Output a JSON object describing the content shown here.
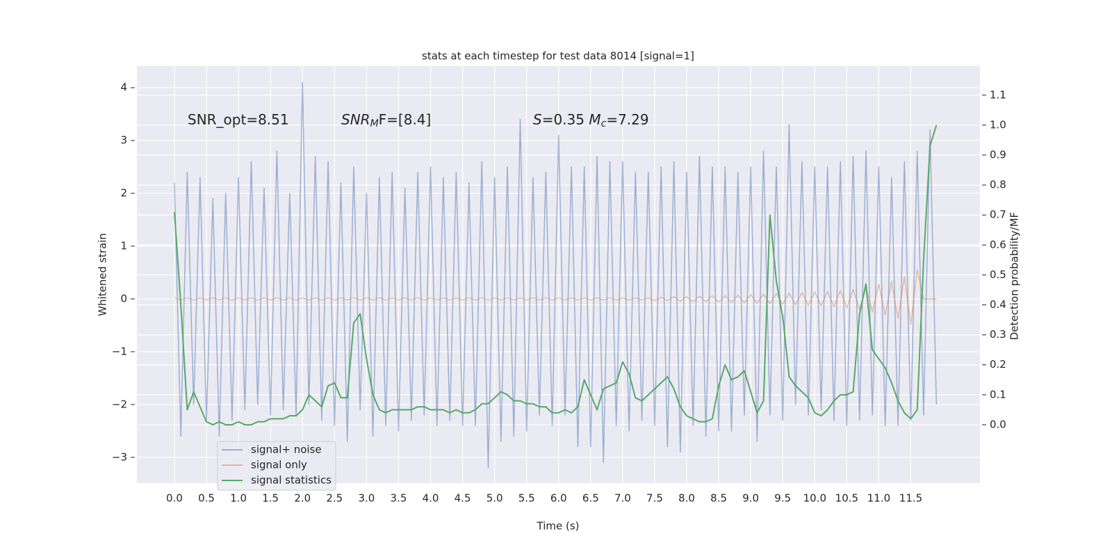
{
  "chart_data": {
    "type": "line",
    "title": "stats at each timestep for test data 8014 [signal=1]",
    "xlabel": "Time (s)",
    "ylabel": "Whitened strain",
    "y2label": "Detection probability/MF",
    "annotations": [
      [
        {
          "text": "SNR_opt=8.51",
          "style": "normal"
        }
      ],
      [
        {
          "text": "SNR",
          "style": "italic"
        },
        {
          "text": "M",
          "style": "sub-italic"
        },
        {
          "text": "F=[8.4]",
          "style": "normal"
        }
      ],
      [
        {
          "text": "S",
          "style": "italic"
        },
        {
          "text": "=0.35   ",
          "style": "normal"
        },
        {
          "text": "M",
          "style": "italic"
        },
        {
          "text": "c",
          "style": "sub-italic"
        },
        {
          "text": "=7.29",
          "style": "normal"
        }
      ]
    ],
    "x": [
      0,
      0.1,
      0.2,
      0.3,
      0.4,
      0.5,
      0.6,
      0.7,
      0.8,
      0.9,
      1,
      1.1,
      1.2,
      1.3,
      1.4,
      1.5,
      1.6,
      1.7,
      1.8,
      1.9,
      2,
      2.1,
      2.2,
      2.3,
      2.4,
      2.5,
      2.6,
      2.7,
      2.8,
      2.9,
      3,
      3.1,
      3.2,
      3.3,
      3.4,
      3.5,
      3.6,
      3.7,
      3.8,
      3.9,
      4,
      4.1,
      4.2,
      4.3,
      4.4,
      4.5,
      4.6,
      4.7,
      4.8,
      4.9,
      5,
      5.1,
      5.2,
      5.3,
      5.4,
      5.5,
      5.6,
      5.7,
      5.8,
      5.9,
      6,
      6.1,
      6.2,
      6.3,
      6.4,
      6.5,
      6.6,
      6.7,
      6.8,
      6.9,
      7,
      7.1,
      7.2,
      7.3,
      7.4,
      7.5,
      7.6,
      7.7,
      7.8,
      7.9,
      8,
      8.1,
      8.2,
      8.3,
      8.4,
      8.5,
      8.6,
      8.7,
      8.8,
      8.9,
      9,
      9.1,
      9.2,
      9.3,
      9.4,
      9.5,
      9.6,
      9.7,
      9.8,
      9.9,
      10,
      10.1,
      10.2,
      10.3,
      10.4,
      10.5,
      10.6,
      10.7,
      10.8,
      10.9,
      11,
      11.1,
      11.2,
      11.3,
      11.4,
      11.5,
      11.6,
      11.7,
      11.8,
      11.9
    ],
    "series": [
      {
        "name": "signal+ noise",
        "color": "#4c72b0",
        "opacity": 0.5,
        "values": [
          2.2,
          -2.6,
          2.4,
          -2.0,
          2.3,
          -2.3,
          1.9,
          -2.6,
          2.0,
          -2.3,
          2.3,
          -2.1,
          2.6,
          -2.0,
          2.1,
          -2.2,
          2.8,
          -2.1,
          2.0,
          -2.2,
          4.1,
          -2.0,
          2.7,
          -2.3,
          2.6,
          -2.4,
          2.2,
          -2.7,
          2.5,
          -2.1,
          2.0,
          -2.6,
          2.3,
          -2.4,
          2.4,
          -2.5,
          2.1,
          -2.3,
          2.4,
          -2.2,
          2.5,
          -2.4,
          2.3,
          -2.3,
          2.4,
          -2.4,
          2.2,
          -2.4,
          2.6,
          -3.2,
          2.3,
          -2.7,
          2.5,
          -2.6,
          3.4,
          -2.5,
          2.3,
          -2.2,
          2.4,
          -2.4,
          3.1,
          -2.2,
          2.5,
          -2.8,
          2.5,
          -2.8,
          2.7,
          -3.1,
          2.6,
          -2.4,
          2.6,
          -2.5,
          2.4,
          -2.3,
          2.4,
          -2.4,
          2.5,
          -2.8,
          2.6,
          -2.9,
          2.4,
          -2.4,
          2.7,
          -2.6,
          2.5,
          -2.5,
          2.5,
          -2.5,
          2.4,
          -2.2,
          2.5,
          -2.7,
          2.8,
          -2.2,
          2.5,
          -2.3,
          3.3,
          -2.0,
          2.6,
          -2.2,
          2.5,
          -2.1,
          2.5,
          -2.3,
          2.6,
          -2.4,
          2.7,
          -2.3,
          2.8,
          -2.2,
          2.5,
          -2.4,
          2.3,
          -2.4,
          2.6,
          -2.3,
          2.8,
          -2.2,
          3.2,
          -2.0
        ]
      },
      {
        "name": "signal only",
        "color": "#dd8452",
        "opacity": 0.5,
        "values": [
          0.02,
          -0.02,
          0.02,
          -0.02,
          0.02,
          -0.02,
          0.02,
          -0.02,
          0.02,
          -0.02,
          0.02,
          -0.02,
          0.02,
          -0.02,
          0.02,
          -0.02,
          0.02,
          -0.02,
          0.02,
          -0.02,
          0.02,
          -0.02,
          0.02,
          -0.02,
          0.02,
          -0.02,
          0.02,
          -0.02,
          0.02,
          -0.02,
          0.02,
          -0.02,
          0.02,
          -0.02,
          0.02,
          -0.02,
          0.02,
          -0.02,
          0.02,
          -0.02,
          0.02,
          -0.02,
          0.02,
          -0.02,
          0.02,
          -0.02,
          0.02,
          -0.02,
          0.02,
          -0.02,
          0.02,
          -0.02,
          0.02,
          -0.02,
          0.02,
          -0.02,
          0.02,
          -0.02,
          0.02,
          -0.02,
          0.02,
          -0.02,
          0.02,
          -0.02,
          0.02,
          -0.02,
          0.02,
          -0.02,
          0.02,
          -0.02,
          0.02,
          -0.02,
          0.02,
          -0.02,
          0.02,
          -0.03,
          0.03,
          -0.03,
          0.04,
          -0.04,
          0.04,
          -0.05,
          0.05,
          -0.05,
          0.06,
          -0.06,
          0.06,
          -0.07,
          0.07,
          -0.07,
          0.08,
          -0.08,
          0.09,
          -0.09,
          0.1,
          -0.1,
          0.11,
          -0.11,
          0.12,
          -0.12,
          0.13,
          -0.13,
          0.14,
          -0.15,
          0.16,
          -0.17,
          0.18,
          -0.2,
          0.22,
          -0.25,
          0.28,
          -0.3,
          0.33,
          -0.37,
          0.42,
          -0.48,
          0.55,
          0,
          0,
          0
        ]
      },
      {
        "name": "signal statistics",
        "color": "#55a868",
        "opacity": 1,
        "axis": "y2",
        "values": [
          0.71,
          0.4,
          0.05,
          0.11,
          0.06,
          0.01,
          0.0,
          0.01,
          0.0,
          0.0,
          0.01,
          0.0,
          0.0,
          0.01,
          0.01,
          0.02,
          0.02,
          0.02,
          0.03,
          0.03,
          0.05,
          0.1,
          0.08,
          0.06,
          0.13,
          0.14,
          0.09,
          0.09,
          0.34,
          0.37,
          0.22,
          0.1,
          0.05,
          0.04,
          0.05,
          0.05,
          0.05,
          0.05,
          0.06,
          0.06,
          0.05,
          0.05,
          0.05,
          0.04,
          0.05,
          0.04,
          0.04,
          0.05,
          0.07,
          0.07,
          0.09,
          0.11,
          0.1,
          0.08,
          0.08,
          0.07,
          0.07,
          0.06,
          0.06,
          0.04,
          0.04,
          0.05,
          0.04,
          0.06,
          0.15,
          0.1,
          0.05,
          0.12,
          0.13,
          0.14,
          0.21,
          0.17,
          0.09,
          0.08,
          0.1,
          0.12,
          0.14,
          0.16,
          0.12,
          0.06,
          0.03,
          0.02,
          0.01,
          0.01,
          0.02,
          0.13,
          0.2,
          0.15,
          0.16,
          0.18,
          0.11,
          0.04,
          0.08,
          0.7,
          0.48,
          0.36,
          0.16,
          0.13,
          0.11,
          0.09,
          0.04,
          0.03,
          0.05,
          0.08,
          0.1,
          0.1,
          0.11,
          0.37,
          0.47,
          0.25,
          0.22,
          0.19,
          0.14,
          0.08,
          0.04,
          0.02,
          0.05,
          0.55,
          0.93,
          1.0
        ]
      }
    ],
    "xlim": [
      -0.586,
      12.58
    ],
    "ylim": [
      -3.49,
      4.41
    ],
    "y2lim": [
      -0.195,
      1.197
    ],
    "xticks": [
      {
        "value": 0,
        "label": "0.0"
      },
      0.5,
      {
        "value": 1,
        "label": "1.0"
      },
      1.5,
      {
        "value": 2,
        "label": "2.0"
      },
      2.5,
      {
        "value": 3,
        "label": "3.0"
      },
      3.5,
      {
        "value": 4,
        "label": "4.0"
      },
      4.5,
      {
        "value": 5,
        "label": "5.0"
      },
      5.5,
      {
        "value": 6,
        "label": "6.0"
      },
      6.5,
      {
        "value": 7,
        "label": "7.0"
      },
      7.5,
      {
        "value": 8,
        "label": "8.0"
      },
      8.5,
      {
        "value": 9,
        "label": "9.0"
      },
      9.5,
      {
        "value": 10,
        "label": "10.0"
      },
      10.5,
      {
        "value": 11,
        "label": "11.0"
      },
      11.5
    ],
    "yticks": [
      {
        "value": -3,
        "label": "−3"
      },
      {
        "value": -2,
        "label": "−2"
      },
      {
        "value": -1,
        "label": "−1"
      },
      0,
      1,
      2,
      3,
      4
    ],
    "y2ticks": [
      {
        "value": 0,
        "label": "0.0"
      },
      0.1,
      0.2,
      0.3,
      0.4,
      0.5,
      0.6,
      0.7,
      0.8,
      0.9,
      {
        "value": 1,
        "label": "1.0"
      },
      1.1
    ],
    "grid": true,
    "legend": "lower left"
  }
}
